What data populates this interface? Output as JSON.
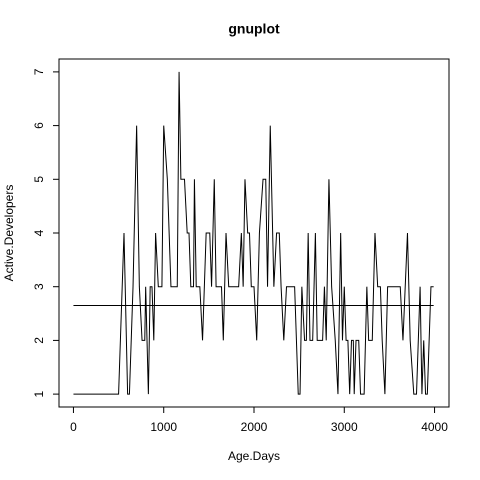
{
  "chart_data": {
    "type": "line",
    "title": "gnuplot",
    "x_label": "Age.Days",
    "y_label": "Active.Developers",
    "xlim": [
      -160,
      4160
    ],
    "ylim": [
      0.76,
      7.24
    ],
    "xticks": [
      0,
      1000,
      2000,
      3000,
      4000
    ],
    "yticks": [
      1,
      2,
      3,
      4,
      5,
      6,
      7
    ],
    "hline": 2.65,
    "color": "#000000",
    "x": [
      0,
      500,
      520,
      560,
      600,
      620,
      660,
      700,
      730,
      760,
      790,
      800,
      830,
      850,
      870,
      890,
      910,
      940,
      980,
      1000,
      1040,
      1080,
      1150,
      1170,
      1190,
      1230,
      1260,
      1280,
      1300,
      1330,
      1340,
      1360,
      1400,
      1430,
      1470,
      1510,
      1530,
      1560,
      1580,
      1640,
      1660,
      1690,
      1720,
      1830,
      1860,
      1880,
      1900,
      1930,
      1950,
      1970,
      2000,
      2030,
      2060,
      2100,
      2130,
      2150,
      2180,
      2220,
      2250,
      2280,
      2300,
      2330,
      2360,
      2450,
      2470,
      2490,
      2510,
      2530,
      2560,
      2580,
      2600,
      2620,
      2650,
      2680,
      2700,
      2760,
      2780,
      2800,
      2830,
      2860,
      2900,
      2930,
      2960,
      2980,
      3000,
      3020,
      3040,
      3060,
      3080,
      3100,
      3110,
      3130,
      3160,
      3180,
      3220,
      3250,
      3270,
      3310,
      3340,
      3370,
      3400,
      3420,
      3450,
      3480,
      3620,
      3650,
      3700,
      3730,
      3770,
      3800,
      3840,
      3860,
      3880,
      3900,
      3920,
      3960,
      3990
    ],
    "values": [
      1,
      1,
      2,
      4,
      1,
      1,
      3,
      6,
      3,
      2,
      2,
      3,
      1,
      3,
      3,
      2,
      4,
      3,
      3,
      6,
      5,
      3,
      3,
      7,
      5,
      5,
      4,
      4,
      3,
      3,
      5,
      3,
      3,
      2,
      4,
      4,
      3,
      5,
      3,
      3,
      2,
      4,
      3,
      3,
      4,
      3,
      5,
      4,
      4,
      3,
      3,
      2,
      4,
      5,
      5,
      3,
      6,
      3,
      4,
      4,
      3,
      2,
      3,
      3,
      2,
      1,
      1,
      3,
      2,
      2,
      4,
      2,
      2,
      4,
      2,
      2,
      3,
      2,
      5,
      3,
      2,
      1,
      4,
      2,
      3,
      2,
      2,
      1,
      2,
      2,
      1,
      2,
      2,
      1,
      1,
      3,
      2,
      2,
      4,
      3,
      3,
      2,
      1,
      3,
      3,
      2,
      4,
      2,
      1,
      1,
      3,
      1,
      2,
      1,
      1,
      3,
      3
    ]
  }
}
